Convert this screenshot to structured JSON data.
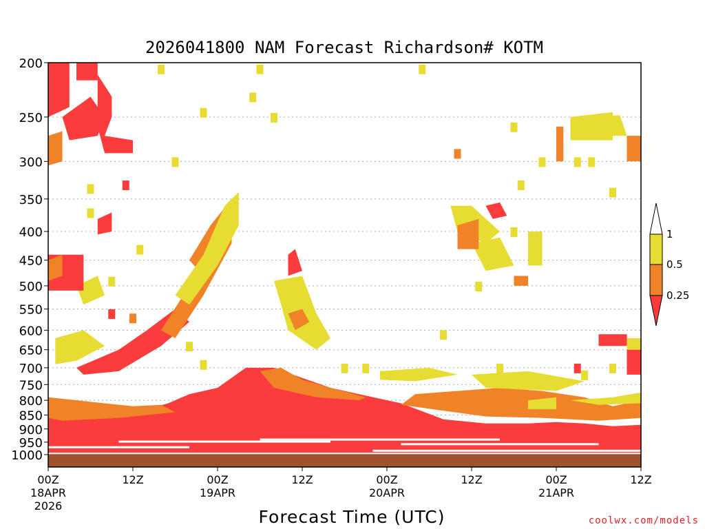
{
  "chart_data": {
    "type": "heatmap",
    "title": "2026041800 NAM Forecast Richardson# KOTM",
    "xlabel": "Forecast Time (UTC)",
    "ylabel": "",
    "credit": "coolwx.com/models",
    "x_range_hours": [
      0,
      84
    ],
    "y_range_hpa": [
      200,
      1000
    ],
    "y_scale": "log",
    "grid": "dotted horizontal",
    "legend_position": "right",
    "x_ticks": [
      {
        "hour": 0,
        "label": "00Z",
        "day": "18APR",
        "year": "2026"
      },
      {
        "hour": 12,
        "label": "12Z",
        "day": "",
        "year": ""
      },
      {
        "hour": 24,
        "label": "00Z",
        "day": "19APR",
        "year": ""
      },
      {
        "hour": 36,
        "label": "12Z",
        "day": "",
        "year": ""
      },
      {
        "hour": 48,
        "label": "00Z",
        "day": "20APR",
        "year": ""
      },
      {
        "hour": 60,
        "label": "12Z",
        "day": "",
        "year": ""
      },
      {
        "hour": 72,
        "label": "00Z",
        "day": "21APR",
        "year": ""
      },
      {
        "hour": 84,
        "label": "12Z",
        "day": "",
        "year": ""
      }
    ],
    "y_ticks": [
      200,
      250,
      300,
      350,
      400,
      450,
      500,
      550,
      600,
      650,
      700,
      750,
      800,
      850,
      900,
      950,
      1000
    ],
    "legend": [
      {
        "label": "1",
        "range": "> 1",
        "color": "#ffffff"
      },
      {
        "label": "0.5",
        "range": "0.5 - 1",
        "color": "#e6dc32"
      },
      {
        "label": "0.25",
        "range": "0.25 - 0.5",
        "color": "#f08228"
      },
      {
        "label": "",
        "range": "< 0.25",
        "color": "#fa3c3c"
      }
    ],
    "ground_color": "#a0522d",
    "regions": [
      {
        "class": "red",
        "pts": [
          [
            0,
            995
          ],
          [
            84,
            995
          ],
          [
            84,
            885
          ],
          [
            80,
            890
          ],
          [
            76,
            880
          ],
          [
            72,
            875
          ],
          [
            68,
            880
          ],
          [
            62,
            880
          ],
          [
            56,
            865
          ],
          [
            50,
            810
          ],
          [
            45,
            785
          ],
          [
            40,
            760
          ],
          [
            36,
            730
          ],
          [
            32,
            700
          ],
          [
            28,
            700
          ],
          [
            24,
            760
          ],
          [
            20,
            780
          ],
          [
            17,
            810
          ],
          [
            14,
            830
          ],
          [
            8,
            850
          ],
          [
            4,
            840
          ],
          [
            0,
            820
          ]
        ]
      },
      {
        "class": "orange",
        "pts": [
          [
            30,
            710
          ],
          [
            33,
            700
          ],
          [
            36,
            735
          ],
          [
            40,
            760
          ],
          [
            45,
            790
          ],
          [
            44,
            800
          ],
          [
            38,
            790
          ],
          [
            32,
            760
          ]
        ]
      },
      {
        "class": "orange",
        "pts": [
          [
            52,
            780
          ],
          [
            58,
            770
          ],
          [
            64,
            760
          ],
          [
            70,
            770
          ],
          [
            76,
            790
          ],
          [
            80,
            820
          ],
          [
            84,
            800
          ],
          [
            84,
            860
          ],
          [
            78,
            870
          ],
          [
            70,
            860
          ],
          [
            62,
            855
          ],
          [
            56,
            835
          ],
          [
            50,
            815
          ]
        ]
      },
      {
        "class": "orange",
        "pts": [
          [
            0,
            790
          ],
          [
            8,
            810
          ],
          [
            12,
            820
          ],
          [
            16,
            815
          ],
          [
            18,
            840
          ],
          [
            10,
            860
          ],
          [
            2,
            870
          ],
          [
            0,
            860
          ]
        ]
      },
      {
        "class": "yellow",
        "pts": [
          [
            60,
            720
          ],
          [
            68,
            710
          ],
          [
            76,
            740
          ],
          [
            72,
            770
          ],
          [
            62,
            760
          ]
        ]
      },
      {
        "class": "yellow",
        "pts": [
          [
            47,
            710
          ],
          [
            54,
            700
          ],
          [
            58,
            720
          ],
          [
            52,
            740
          ],
          [
            47,
            735
          ]
        ]
      },
      {
        "class": "yellow",
        "pts": [
          [
            74,
            800
          ],
          [
            80,
            790
          ],
          [
            84,
            775
          ],
          [
            84,
            810
          ],
          [
            78,
            815
          ]
        ]
      },
      {
        "class": "red",
        "pts": [
          [
            4,
            700
          ],
          [
            10,
            650
          ],
          [
            14,
            600
          ],
          [
            18,
            550
          ],
          [
            20,
            580
          ],
          [
            16,
            640
          ],
          [
            10,
            710
          ],
          [
            5,
            720
          ]
        ]
      },
      {
        "class": "orange",
        "pts": [
          [
            16,
            600
          ],
          [
            20,
            500
          ],
          [
            24,
            410
          ],
          [
            26,
            390
          ],
          [
            26,
            420
          ],
          [
            22,
            520
          ],
          [
            18,
            620
          ]
        ]
      },
      {
        "class": "orange",
        "pts": [
          [
            20,
            450
          ],
          [
            23,
            390
          ],
          [
            26,
            350
          ],
          [
            25,
            420
          ],
          [
            22,
            480
          ]
        ]
      },
      {
        "class": "yellow",
        "pts": [
          [
            18,
            520
          ],
          [
            22,
            440
          ],
          [
            25,
            360
          ],
          [
            27,
            340
          ],
          [
            27,
            390
          ],
          [
            24,
            460
          ],
          [
            20,
            540
          ]
        ]
      },
      {
        "class": "yellow",
        "pts": [
          [
            1,
            620
          ],
          [
            5,
            600
          ],
          [
            8,
            640
          ],
          [
            4,
            680
          ],
          [
            1,
            690
          ]
        ]
      },
      {
        "class": "yellow",
        "pts": [
          [
            4,
            500
          ],
          [
            7,
            480
          ],
          [
            8,
            520
          ],
          [
            5,
            540
          ]
        ]
      },
      {
        "class": "red",
        "pts": [
          [
            0,
            440
          ],
          [
            5,
            440
          ],
          [
            5,
            510
          ],
          [
            0,
            510
          ]
        ]
      },
      {
        "class": "orange",
        "pts": [
          [
            0,
            450
          ],
          [
            2,
            440
          ],
          [
            2,
            480
          ],
          [
            0,
            490
          ]
        ]
      },
      {
        "class": "red",
        "pts": [
          [
            0,
            200
          ],
          [
            3,
            200
          ],
          [
            3,
            240
          ],
          [
            0,
            250
          ]
        ]
      },
      {
        "class": "red",
        "pts": [
          [
            2,
            250
          ],
          [
            6,
            230
          ],
          [
            8,
            250
          ],
          [
            7,
            270
          ],
          [
            3,
            275
          ]
        ]
      },
      {
        "class": "red",
        "pts": [
          [
            4,
            200
          ],
          [
            7,
            200
          ],
          [
            7,
            215
          ],
          [
            4,
            215
          ]
        ]
      },
      {
        "class": "red",
        "pts": [
          [
            7,
            210
          ],
          [
            9,
            230
          ],
          [
            9,
            250
          ],
          [
            8,
            270
          ],
          [
            12,
            275
          ],
          [
            12,
            290
          ],
          [
            8,
            290
          ],
          [
            7,
            260
          ]
        ]
      },
      {
        "class": "orange",
        "pts": [
          [
            0,
            270
          ],
          [
            2,
            265
          ],
          [
            2,
            300
          ],
          [
            0,
            305
          ]
        ]
      },
      {
        "class": "red",
        "pts": [
          [
            7,
            380
          ],
          [
            9,
            370
          ],
          [
            9,
            400
          ],
          [
            7,
            405
          ]
        ]
      },
      {
        "class": "red",
        "pts": [
          [
            34,
            440
          ],
          [
            35,
            430
          ],
          [
            36,
            470
          ],
          [
            34,
            480
          ]
        ]
      },
      {
        "class": "yellow",
        "pts": [
          [
            32,
            490
          ],
          [
            36,
            480
          ],
          [
            38,
            560
          ],
          [
            40,
            620
          ],
          [
            38,
            650
          ],
          [
            34,
            600
          ],
          [
            33,
            540
          ]
        ]
      },
      {
        "class": "orange",
        "pts": [
          [
            34,
            560
          ],
          [
            36,
            550
          ],
          [
            37,
            580
          ],
          [
            35,
            600
          ]
        ]
      },
      {
        "class": "yellow",
        "pts": [
          [
            57,
            360
          ],
          [
            60,
            360
          ],
          [
            64,
            400
          ],
          [
            62,
            420
          ],
          [
            58,
            400
          ]
        ]
      },
      {
        "class": "yellow",
        "pts": [
          [
            60,
            420
          ],
          [
            64,
            410
          ],
          [
            66,
            460
          ],
          [
            62,
            470
          ]
        ]
      },
      {
        "class": "red",
        "pts": [
          [
            62,
            360
          ],
          [
            64,
            355
          ],
          [
            65,
            375
          ],
          [
            63,
            380
          ]
        ]
      },
      {
        "class": "orange",
        "pts": [
          [
            58,
            390
          ],
          [
            61,
            380
          ],
          [
            61,
            430
          ],
          [
            58,
            430
          ]
        ]
      },
      {
        "class": "yellow",
        "pts": [
          [
            68,
            400
          ],
          [
            70,
            400
          ],
          [
            70,
            460
          ],
          [
            68,
            460
          ]
        ]
      },
      {
        "class": "orange",
        "pts": [
          [
            66,
            480
          ],
          [
            68,
            480
          ],
          [
            68,
            500
          ],
          [
            66,
            500
          ]
        ]
      },
      {
        "class": "yellow",
        "pts": [
          [
            74,
            250
          ],
          [
            80,
            245
          ],
          [
            80,
            275
          ],
          [
            74,
            275
          ]
        ]
      },
      {
        "class": "orange",
        "pts": [
          [
            72,
            260
          ],
          [
            73,
            260
          ],
          [
            73,
            300
          ],
          [
            72,
            300
          ]
        ]
      },
      {
        "class": "yellow",
        "pts": [
          [
            78,
            250
          ],
          [
            81,
            248
          ],
          [
            82,
            270
          ],
          [
            79,
            270
          ]
        ]
      },
      {
        "class": "orange",
        "pts": [
          [
            82,
            270
          ],
          [
            84,
            270
          ],
          [
            84,
            300
          ],
          [
            82,
            300
          ]
        ]
      },
      {
        "class": "red",
        "pts": [
          [
            78,
            610
          ],
          [
            82,
            610
          ],
          [
            82,
            640
          ],
          [
            78,
            640
          ]
        ]
      },
      {
        "class": "yellow",
        "pts": [
          [
            82,
            620
          ],
          [
            84,
            620
          ],
          [
            84,
            650
          ],
          [
            82,
            650
          ]
        ]
      },
      {
        "class": "red",
        "pts": [
          [
            82,
            650
          ],
          [
            84,
            650
          ],
          [
            84,
            720
          ],
          [
            82,
            720
          ]
        ]
      },
      {
        "class": "yellow",
        "pts": [
          [
            68,
            800
          ],
          [
            72,
            790
          ],
          [
            72,
            830
          ],
          [
            68,
            830
          ]
        ]
      }
    ],
    "specks": [
      {
        "class": "yellow",
        "hour": 16,
        "hpa": 205
      },
      {
        "class": "yellow",
        "hour": 30,
        "hpa": 205
      },
      {
        "class": "yellow",
        "hour": 53,
        "hpa": 205
      },
      {
        "class": "yellow",
        "hour": 22,
        "hpa": 245
      },
      {
        "class": "yellow",
        "hour": 29,
        "hpa": 230
      },
      {
        "class": "yellow",
        "hour": 32,
        "hpa": 250
      },
      {
        "class": "yellow",
        "hour": 18,
        "hpa": 300
      },
      {
        "class": "yellow",
        "hour": 6,
        "hpa": 335
      },
      {
        "class": "yellow",
        "hour": 6,
        "hpa": 370
      },
      {
        "class": "red",
        "hour": 11,
        "hpa": 330
      },
      {
        "class": "yellow",
        "hour": 13,
        "hpa": 430
      },
      {
        "class": "yellow",
        "hour": 9,
        "hpa": 490
      },
      {
        "class": "red",
        "hour": 9,
        "hpa": 560
      },
      {
        "class": "orange",
        "hour": 12,
        "hpa": 570
      },
      {
        "class": "yellow",
        "hour": 20,
        "hpa": 640
      },
      {
        "class": "yellow",
        "hour": 22,
        "hpa": 690
      },
      {
        "class": "yellow",
        "hour": 42,
        "hpa": 700
      },
      {
        "class": "yellow",
        "hour": 45,
        "hpa": 700
      },
      {
        "class": "yellow",
        "hour": 56,
        "hpa": 610
      },
      {
        "class": "yellow",
        "hour": 61,
        "hpa": 500
      },
      {
        "class": "yellow",
        "hour": 66,
        "hpa": 400
      },
      {
        "class": "yellow",
        "hour": 67,
        "hpa": 330
      },
      {
        "class": "yellow",
        "hour": 66,
        "hpa": 260
      },
      {
        "class": "yellow",
        "hour": 70,
        "hpa": 300
      },
      {
        "class": "yellow",
        "hour": 75,
        "hpa": 300
      },
      {
        "class": "yellow",
        "hour": 77,
        "hpa": 300
      },
      {
        "class": "yellow",
        "hour": 80,
        "hpa": 340
      },
      {
        "class": "orange",
        "hour": 58,
        "hpa": 290
      },
      {
        "class": "yellow",
        "hour": 64,
        "hpa": 700
      },
      {
        "class": "red",
        "hour": 75,
        "hpa": 700
      },
      {
        "class": "yellow",
        "hour": 76,
        "hpa": 720
      },
      {
        "class": "yellow",
        "hour": 80,
        "hpa": 700
      }
    ]
  },
  "ui": {
    "colorbar_name": "Richardson#"
  }
}
